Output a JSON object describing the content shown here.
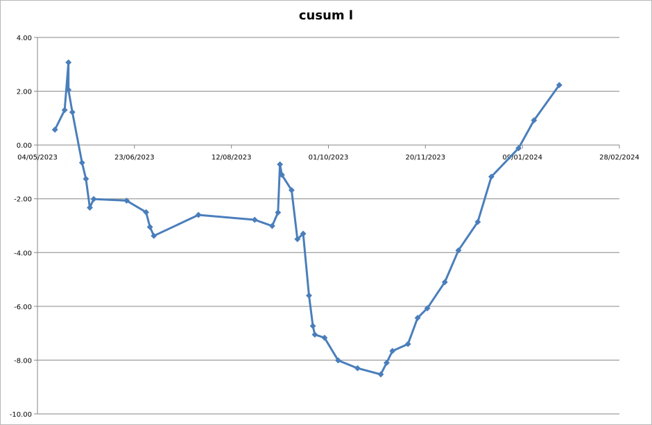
{
  "chart_data": {
    "type": "line",
    "title": "cusum l",
    "xlabel": "",
    "ylabel": "",
    "x_ticks": [
      "04/05/2023",
      "23/06/2023",
      "12/08/2023",
      "01/10/2023",
      "20/11/2023",
      "09/01/2024",
      "28/02/2024"
    ],
    "xlim": [
      "2023-05-04",
      "2024-02-28"
    ],
    "y_ticks": [
      "4.00",
      "2.00",
      "0.00",
      "-2.00",
      "-4.00",
      "-6.00",
      "-8.00",
      "-10.00"
    ],
    "ylim": [
      -10,
      4
    ],
    "grid": "horizontal",
    "legend": "none",
    "series_color": "#4a7ebb",
    "series": [
      {
        "points": [
          {
            "x": "2023-05-13",
            "y": 0.57
          },
          {
            "x": "2023-05-18",
            "y": 1.3
          },
          {
            "x": "2023-05-20",
            "y": 3.07
          },
          {
            "x": "2023-05-20",
            "y": 2.05
          },
          {
            "x": "2023-05-22",
            "y": 1.22
          },
          {
            "x": "2023-05-27",
            "y": -0.66
          },
          {
            "x": "2023-05-29",
            "y": -1.26
          },
          {
            "x": "2023-05-31",
            "y": -2.33
          },
          {
            "x": "2023-06-02",
            "y": -2.01
          },
          {
            "x": "2023-06-19",
            "y": -2.07
          },
          {
            "x": "2023-06-29",
            "y": -2.5
          },
          {
            "x": "2023-07-01",
            "y": -3.05
          },
          {
            "x": "2023-07-03",
            "y": -3.38
          },
          {
            "x": "2023-07-26",
            "y": -2.6
          },
          {
            "x": "2023-08-24",
            "y": -2.78
          },
          {
            "x": "2023-09-02",
            "y": -3.01
          },
          {
            "x": "2023-09-05",
            "y": -2.51
          },
          {
            "x": "2023-09-06",
            "y": -0.72
          },
          {
            "x": "2023-09-07",
            "y": -1.11
          },
          {
            "x": "2023-09-12",
            "y": -1.68
          },
          {
            "x": "2023-09-15",
            "y": -3.5
          },
          {
            "x": "2023-09-18",
            "y": -3.3
          },
          {
            "x": "2023-09-21",
            "y": -5.6
          },
          {
            "x": "2023-09-23",
            "y": -6.73
          },
          {
            "x": "2023-09-24",
            "y": -7.05
          },
          {
            "x": "2023-09-29",
            "y": -7.17
          },
          {
            "x": "2023-10-06",
            "y": -8.01
          },
          {
            "x": "2023-10-16",
            "y": -8.3
          },
          {
            "x": "2023-10-28",
            "y": -8.53
          },
          {
            "x": "2023-10-31",
            "y": -8.1
          },
          {
            "x": "2023-11-03",
            "y": -7.66
          },
          {
            "x": "2023-11-11",
            "y": -7.4
          },
          {
            "x": "2023-11-16",
            "y": -6.43
          },
          {
            "x": "2023-11-21",
            "y": -6.07
          },
          {
            "x": "2023-11-30",
            "y": -5.1
          },
          {
            "x": "2023-12-07",
            "y": -3.92
          },
          {
            "x": "2023-12-17",
            "y": -2.86
          },
          {
            "x": "2023-12-24",
            "y": -1.18
          },
          {
            "x": "2024-01-07",
            "y": -0.12
          },
          {
            "x": "2024-01-15",
            "y": 0.92
          },
          {
            "x": "2024-01-28",
            "y": 2.23
          }
        ]
      }
    ]
  }
}
